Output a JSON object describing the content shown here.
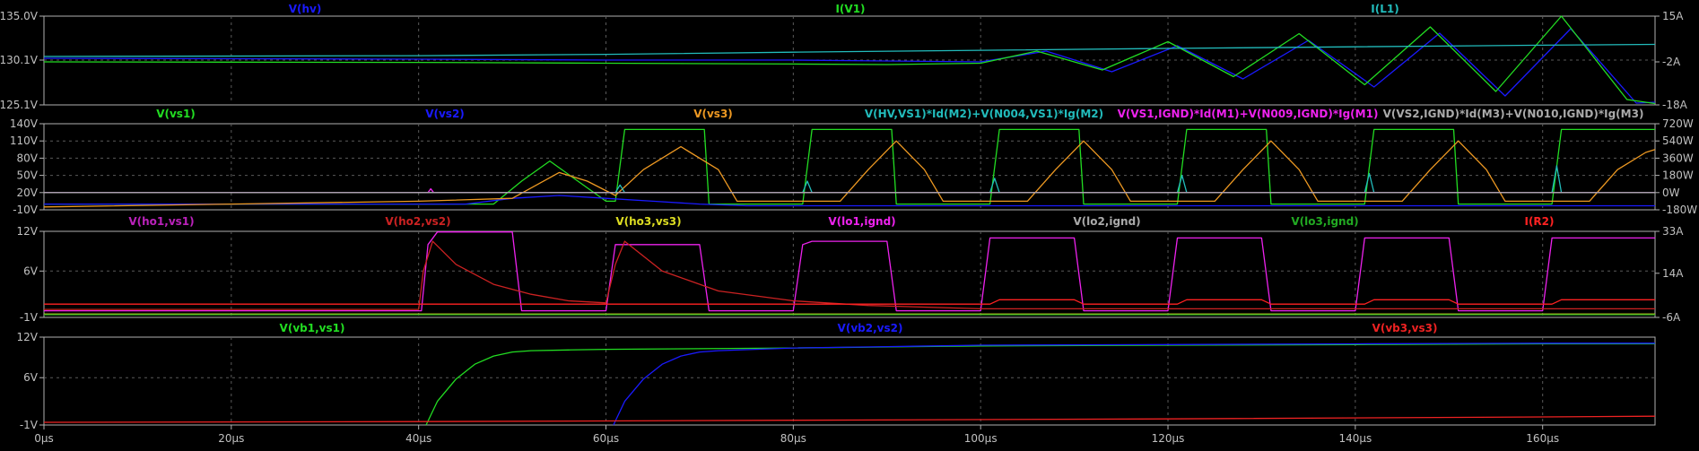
{
  "colors": {
    "background": "#000000",
    "frame": "#b0b0b0",
    "grid": "#5a5a5a",
    "tick_text": "#c0c0c0"
  },
  "x_axis": {
    "range": [
      0,
      172
    ],
    "ticks": [
      {
        "value": 0,
        "label": "0µs"
      },
      {
        "value": 20,
        "label": "20µs"
      },
      {
        "value": 40,
        "label": "40µs"
      },
      {
        "value": 60,
        "label": "60µs"
      },
      {
        "value": 80,
        "label": "80µs"
      },
      {
        "value": 100,
        "label": "100µs"
      },
      {
        "value": 120,
        "label": "120µs"
      },
      {
        "value": 140,
        "label": "140µs"
      },
      {
        "value": 160,
        "label": "160µs"
      }
    ]
  },
  "chart_data": [
    {
      "type": "line",
      "pane": 1,
      "grid": true,
      "y_left": {
        "range": [
          125.1,
          135.0
        ],
        "ticks": [
          "135.0V",
          "130.1V",
          "125.1V"
        ],
        "tick_values": [
          135.0,
          130.1,
          125.1
        ]
      },
      "y_right": {
        "range": [
          -18,
          15
        ],
        "ticks": [
          "15A",
          "-2A",
          "-18A"
        ],
        "tick_values": [
          15,
          -2,
          -18
        ]
      },
      "legend": [
        {
          "name": "V(hv)",
          "color": "#1a1aff"
        },
        {
          "name": "I(V1)",
          "color": "#22dd22"
        },
        {
          "name": "I(L1)",
          "color": "#22bbbb"
        }
      ],
      "series": [
        {
          "name": "V(hv)",
          "axis": "left",
          "color": "#1a1aff",
          "x": [
            0,
            40,
            60,
            80,
            90,
            100,
            107,
            114,
            121,
            128,
            135,
            142,
            149,
            156,
            163,
            170,
            172
          ],
          "y": [
            130.3,
            130.2,
            130.1,
            130.1,
            130.0,
            129.9,
            131.1,
            128.8,
            131.7,
            128.0,
            132.3,
            127.1,
            133.1,
            126.1,
            133.6,
            125.3,
            125.4
          ]
        },
        {
          "name": "I(V1)",
          "axis": "right",
          "color": "#22dd22",
          "x": [
            0,
            40,
            60,
            80,
            90,
            100,
            106,
            113,
            120,
            127,
            134,
            141,
            148,
            155,
            162,
            169,
            172
          ],
          "y": [
            -2.0,
            -2.2,
            -2.5,
            -2.8,
            -3.0,
            -2.5,
            2.0,
            -5.0,
            5.5,
            -7.5,
            8.5,
            -10.5,
            11.0,
            -13.0,
            15.0,
            -16.0,
            -17.5
          ]
        },
        {
          "name": "I(L1)",
          "axis": "right",
          "color": "#22bbbb",
          "x": [
            0,
            40,
            60,
            80,
            100,
            120,
            140,
            160,
            172
          ],
          "y": [
            0.0,
            0.3,
            0.8,
            1.6,
            2.3,
            3.0,
            3.6,
            4.2,
            4.5
          ]
        }
      ]
    },
    {
      "type": "line",
      "pane": 2,
      "grid": true,
      "y_left": {
        "range": [
          -10,
          140
        ],
        "ticks": [
          "140V",
          "110V",
          "80V",
          "50V",
          "20V",
          "-10V"
        ],
        "tick_values": [
          140,
          110,
          80,
          50,
          20,
          -10
        ]
      },
      "y_right": {
        "range": [
          -180,
          720
        ],
        "ticks": [
          "720W",
          "540W",
          "360W",
          "180W",
          "0W",
          "-180W"
        ],
        "tick_values": [
          720,
          540,
          360,
          180,
          0,
          -180
        ]
      },
      "legend": [
        {
          "name": "V(vs1)",
          "color": "#22dd22"
        },
        {
          "name": "V(vs2)",
          "color": "#1a1aff"
        },
        {
          "name": "V(vs3)",
          "color": "#ee9922"
        },
        {
          "name": "V(HV,VS1)*Id(M2)+V(N004,VS1)*Ig(M2)",
          "color": "#22bbbb"
        },
        {
          "name": "V(VS1,IGND)*Id(M1)+V(N009,IGND)*Ig(M1)",
          "color": "#ee22ee"
        },
        {
          "name": "V(VS2,IGND)*Id(M3)+V(N010,IGND)*Ig(M3)",
          "color": "#aaaaaa"
        }
      ],
      "series": [
        {
          "name": "V(vs1)",
          "axis": "left",
          "color": "#22dd22",
          "x": [
            0,
            40,
            48,
            51,
            54,
            57,
            60,
            61,
            62,
            63,
            70,
            70.5,
            71,
            80,
            81,
            82,
            90,
            90.5,
            91,
            100,
            101,
            102,
            110,
            110.5,
            111,
            120,
            121,
            122,
            130,
            130.5,
            131,
            140,
            141,
            142,
            150,
            150.5,
            151,
            160,
            161,
            162,
            172
          ],
          "y": [
            0,
            0,
            0,
            40,
            75,
            40,
            5,
            5,
            130,
            130,
            130,
            130,
            0,
            0,
            0,
            130,
            130,
            130,
            0,
            0,
            0,
            130,
            130,
            130,
            0,
            0,
            0,
            130,
            130,
            130,
            0,
            0,
            0,
            130,
            130,
            130,
            0,
            0,
            0,
            130,
            130
          ]
        },
        {
          "name": "V(vs2)",
          "axis": "left",
          "color": "#1a1aff",
          "x": [
            0,
            40,
            45,
            50,
            55,
            60,
            65,
            70,
            75,
            172
          ],
          "y": [
            0,
            0,
            0,
            10,
            15,
            10,
            5,
            0,
            -3,
            -3
          ]
        },
        {
          "name": "V(vs3)",
          "axis": "left",
          "color": "#ee9922",
          "x": [
            0,
            20,
            40,
            50,
            55,
            58,
            61,
            64,
            68,
            72,
            74,
            85,
            88,
            91,
            94,
            96,
            105,
            108,
            111,
            114,
            116,
            125,
            128,
            131,
            134,
            136,
            145,
            148,
            151,
            154,
            156,
            165,
            168,
            171,
            172
          ],
          "y": [
            -5,
            0,
            5,
            10,
            55,
            40,
            15,
            60,
            100,
            60,
            5,
            5,
            60,
            110,
            60,
            5,
            5,
            60,
            110,
            60,
            5,
            5,
            60,
            110,
            60,
            5,
            5,
            60,
            110,
            60,
            5,
            5,
            60,
            90,
            95
          ]
        },
        {
          "name": "V(HV,VS1)*Id(M2)+V(N004,VS1)*Ig(M2)",
          "axis": "right",
          "color": "#22bbbb",
          "x": [
            0,
            40,
            61,
            61.5,
            62,
            81,
            81.5,
            82,
            101,
            101.5,
            102,
            121,
            121.5,
            122,
            141,
            141.5,
            142,
            161,
            161.5,
            162,
            172
          ],
          "y": [
            0,
            0,
            0,
            80,
            0,
            0,
            120,
            0,
            0,
            150,
            0,
            0,
            180,
            0,
            0,
            200,
            0,
            0,
            280,
            0,
            0
          ]
        },
        {
          "name": "V(VS1,IGND)*Id(M1)+V(N009,IGND)*Ig(M1)",
          "axis": "right",
          "color": "#ee22ee",
          "x": [
            0,
            41,
            41.3,
            41.6,
            60,
            70,
            172
          ],
          "y": [
            0,
            0,
            40,
            0,
            0,
            0,
            0
          ]
        },
        {
          "name": "V(VS2,IGND)*Id(M3)+V(N010,IGND)*Ig(M3)",
          "axis": "right",
          "color": "#aaaaaa",
          "x": [
            0,
            60,
            70,
            172
          ],
          "y": [
            0,
            0,
            0,
            0
          ]
        }
      ]
    },
    {
      "type": "line",
      "pane": 3,
      "grid": true,
      "y_left": {
        "range": [
          -1,
          12
        ],
        "ticks": [
          "12V",
          "6V",
          "-1V"
        ],
        "tick_values": [
          12,
          6,
          -1
        ]
      },
      "y_right": {
        "range": [
          -6,
          33
        ],
        "ticks": [
          "33A",
          "14A",
          "-6A"
        ],
        "tick_values": [
          33,
          14,
          -6
        ]
      },
      "legend": [
        {
          "name": "V(ho1,vs1)",
          "color": "#bb22bb"
        },
        {
          "name": "V(ho2,vs2)",
          "color": "#cc2222"
        },
        {
          "name": "V(ho3,vs3)",
          "color": "#dddd22"
        },
        {
          "name": "V(lo1,ignd)",
          "color": "#ee22ee"
        },
        {
          "name": "V(lo2,ignd)",
          "color": "#aaaaaa"
        },
        {
          "name": "V(lo3,ignd)",
          "color": "#22aa22"
        },
        {
          "name": "I(R2)",
          "color": "#ff2222"
        }
      ],
      "series": [
        {
          "name": "V(lo1,ignd)",
          "axis": "left",
          "color": "#ee22ee",
          "x": [
            0,
            40,
            40.3,
            41,
            42,
            50,
            51,
            52,
            60,
            61,
            62,
            70,
            71,
            72,
            80,
            81,
            82,
            90,
            91,
            92,
            100,
            101,
            102,
            110,
            111,
            112,
            120,
            121,
            122,
            130,
            131,
            132,
            140,
            141,
            142,
            150,
            151,
            152,
            160,
            161,
            162,
            172
          ],
          "y": [
            0,
            0,
            0,
            10,
            11.9,
            11.9,
            0,
            0,
            0,
            10,
            10,
            10,
            0,
            0,
            0,
            10,
            10.5,
            10.5,
            0,
            0,
            0,
            11,
            11,
            11,
            0,
            0,
            0,
            11,
            11,
            11,
            0,
            0,
            0,
            11,
            11,
            11,
            0,
            0,
            0,
            11,
            11,
            11
          ]
        },
        {
          "name": "V(ho2,vs2)",
          "axis": "left",
          "color": "#cc2222",
          "x": [
            0,
            40,
            40.5,
            41.5,
            44,
            48,
            52,
            56,
            60,
            61,
            62,
            66,
            72,
            80,
            88,
            100,
            172
          ],
          "y": [
            0.2,
            0.2,
            6,
            10.5,
            7,
            4,
            2.5,
            1.5,
            1.2,
            7,
            10.5,
            6,
            3,
            1.5,
            0.8,
            0.3,
            0.3
          ]
        },
        {
          "name": "V(ho3,vs3)",
          "axis": "left",
          "color": "#dddd22",
          "x": [
            0,
            60,
            172
          ],
          "y": [
            -0.5,
            -0.5,
            -0.5
          ]
        },
        {
          "name": "I(R2)",
          "axis": "right",
          "color": "#ff2222",
          "x": [
            0,
            100,
            101,
            102,
            110,
            111,
            120,
            121,
            122,
            130,
            131,
            140,
            141,
            142,
            150,
            151,
            160,
            161,
            162,
            170,
            172
          ],
          "y": [
            0,
            0,
            0,
            2,
            2,
            0,
            0,
            0,
            2,
            2,
            0,
            0,
            0,
            2,
            2,
            0,
            0,
            0,
            2,
            2,
            2
          ]
        },
        {
          "name": "V(lo3,ignd)",
          "axis": "left",
          "color": "#22aa22",
          "x": [
            0,
            172
          ],
          "y": [
            -0.6,
            -0.6
          ]
        }
      ]
    },
    {
      "type": "line",
      "pane": 4,
      "grid": true,
      "y_left": {
        "range": [
          -1,
          12
        ],
        "ticks": [
          "12V",
          "6V",
          "-1V"
        ],
        "tick_values": [
          12,
          6,
          -1
        ]
      },
      "legend": [
        {
          "name": "V(vb1,vs1)",
          "color": "#22dd22"
        },
        {
          "name": "V(vb2,vs2)",
          "color": "#1a1aff"
        },
        {
          "name": "V(vb3,vs3)",
          "color": "#ee2222"
        }
      ],
      "series": [
        {
          "name": "V(vb1,vs1)",
          "axis": "left",
          "color": "#22dd22",
          "x": [
            40.8,
            42,
            44,
            46,
            48,
            50,
            52,
            56,
            60,
            80,
            100,
            120,
            140,
            160,
            172
          ],
          "y": [
            -1,
            2.5,
            5.8,
            8,
            9.2,
            9.8,
            10.0,
            10.1,
            10.2,
            10.4,
            10.7,
            10.8,
            10.9,
            11.0,
            11.0
          ]
        },
        {
          "name": "V(vb2,vs2)",
          "axis": "left",
          "color": "#1a1aff",
          "x": [
            60.8,
            62,
            64,
            66,
            68,
            70,
            72,
            76,
            80,
            90,
            100,
            120,
            140,
            160,
            172
          ],
          "y": [
            -1,
            2.5,
            5.8,
            8,
            9.2,
            9.8,
            10.0,
            10.2,
            10.4,
            10.6,
            10.8,
            10.9,
            11.0,
            11.1,
            11.1
          ]
        },
        {
          "name": "V(vb3,vs3)",
          "axis": "left",
          "color": "#ee2222",
          "x": [
            0,
            40,
            80,
            120,
            160,
            172
          ],
          "y": [
            -0.6,
            -0.5,
            -0.3,
            -0.1,
            0.2,
            0.3
          ]
        }
      ]
    }
  ]
}
